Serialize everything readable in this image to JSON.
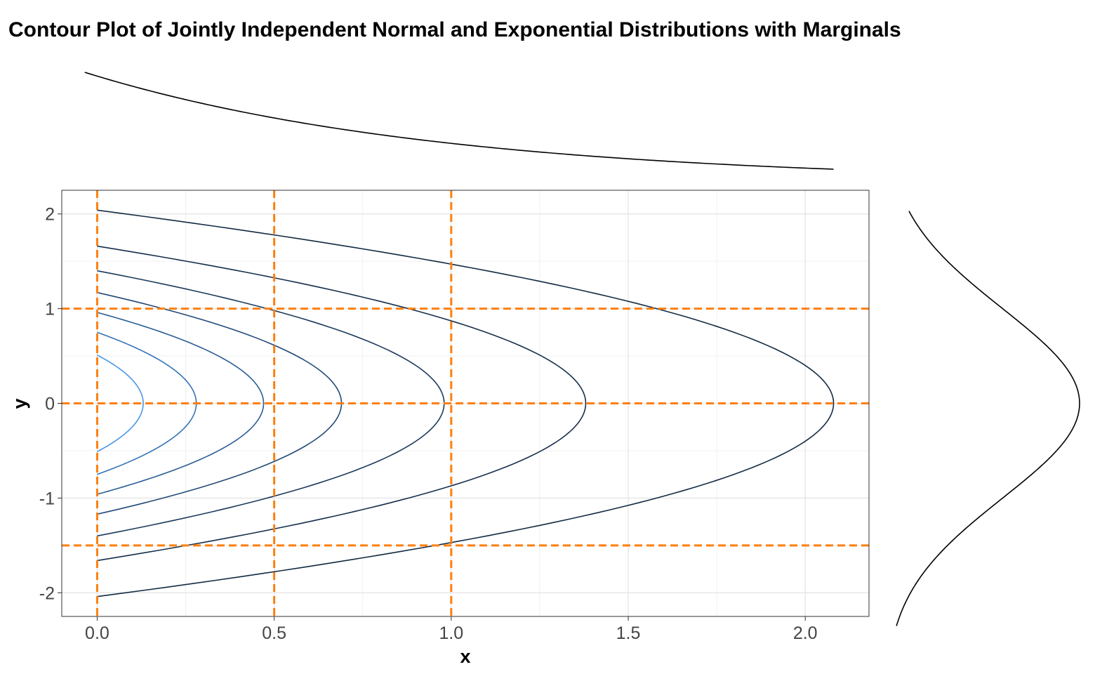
{
  "chart_data": {
    "type": "contour",
    "title": "Contour Plot of Jointly Independent Normal and Exponential Distributions with Marginals",
    "xlabel": "x",
    "ylabel": "y",
    "xlim": [
      -0.1,
      2.18
    ],
    "ylim": [
      -2.25,
      2.25
    ],
    "x_ticks": [
      0.0,
      0.5,
      1.0,
      1.5,
      2.0
    ],
    "x_tick_labels": [
      "0.0",
      "0.5",
      "1.0",
      "1.5",
      "2.0"
    ],
    "y_ticks": [
      -2,
      -1,
      0,
      1,
      2
    ],
    "y_tick_labels": [
      "-2",
      "-1",
      "0",
      "1",
      "2"
    ],
    "grid": true,
    "contours": [
      {
        "x_at_y0": 2.08,
        "y_at_x0": 2.04,
        "color": "#132b43"
      },
      {
        "x_at_y0": 1.38,
        "y_at_x0": 1.66,
        "color": "#162f4b"
      },
      {
        "x_at_y0": 0.98,
        "y_at_x0": 1.4,
        "color": "#1b3a5c"
      },
      {
        "x_at_y0": 0.69,
        "y_at_x0": 1.17,
        "color": "#224a77"
      },
      {
        "x_at_y0": 0.47,
        "y_at_x0": 0.96,
        "color": "#2a5d95"
      },
      {
        "x_at_y0": 0.28,
        "y_at_x0": 0.75,
        "color": "#3473b6"
      },
      {
        "x_at_y0": 0.13,
        "y_at_x0": 0.51,
        "color": "#4a96e8"
      }
    ],
    "reference_lines": {
      "vertical_x": [
        0.0,
        0.5,
        1.0
      ],
      "horizontal_y": [
        -1.5,
        0.0,
        1.0
      ],
      "color": "#ff7f0e",
      "style": "dashed"
    },
    "marginal_x": {
      "distribution": "exponential",
      "x_range": [
        -0.035,
        2.08
      ],
      "color": "#000000"
    },
    "marginal_y": {
      "distribution": "normal",
      "y_range": [
        -2.35,
        2.03
      ],
      "color": "#000000"
    }
  }
}
